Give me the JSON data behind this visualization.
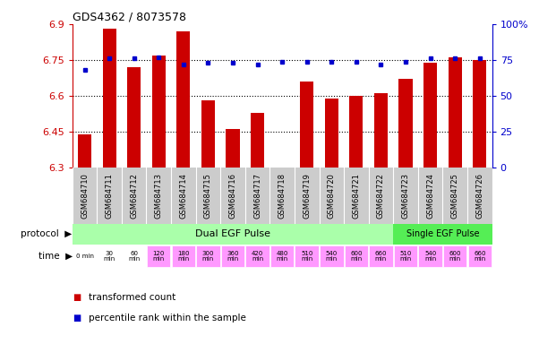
{
  "title": "GDS4362 / 8073578",
  "samples": [
    "GSM684710",
    "GSM684711",
    "GSM684712",
    "GSM684713",
    "GSM684714",
    "GSM684715",
    "GSM684716",
    "GSM684717",
    "GSM684718",
    "GSM684719",
    "GSM684720",
    "GSM684721",
    "GSM684722",
    "GSM684723",
    "GSM684724",
    "GSM684725",
    "GSM684726"
  ],
  "transformed_count": [
    6.44,
    6.88,
    6.72,
    6.77,
    6.87,
    6.58,
    6.46,
    6.53,
    6.3,
    6.66,
    6.59,
    6.6,
    6.61,
    6.67,
    6.74,
    6.76,
    6.75
  ],
  "percentile_rank": [
    68,
    76,
    76,
    77,
    72,
    73,
    73,
    72,
    74,
    74,
    74,
    74,
    72,
    74,
    76,
    76,
    76
  ],
  "ylim_left": [
    6.3,
    6.9
  ],
  "ylim_right": [
    0,
    100
  ],
  "yticks_left": [
    6.3,
    6.45,
    6.6,
    6.75,
    6.9
  ],
  "yticks_right": [
    0,
    25,
    50,
    75,
    100
  ],
  "bar_color": "#cc0000",
  "dot_color": "#0000cc",
  "bar_base": 6.3,
  "time_labels": [
    "0 min",
    "30\nmin",
    "60\nmin",
    "120\nmin",
    "180\nmin",
    "300\nmin",
    "360\nmin",
    "420\nmin",
    "480\nmin",
    "510\nmin",
    "540\nmin",
    "600\nmin",
    "660\nmin",
    "510\nmin",
    "540\nmin",
    "600\nmin",
    "660\nmin"
  ],
  "protocol_dual_label": "Dual EGF Pulse",
  "protocol_single_label": "Single EGF Pulse",
  "protocol_dual_color": "#aaffaa",
  "protocol_single_color": "#55ee55",
  "time_white_count": 3,
  "time_pink_color": "#ff99ff",
  "legend_bar_label": "transformed count",
  "legend_dot_label": "percentile rank within the sample",
  "bar_axis_color": "#cc0000",
  "right_axis_color": "#0000cc",
  "sample_bg_color": "#cccccc",
  "fig_bg": "#ffffff"
}
